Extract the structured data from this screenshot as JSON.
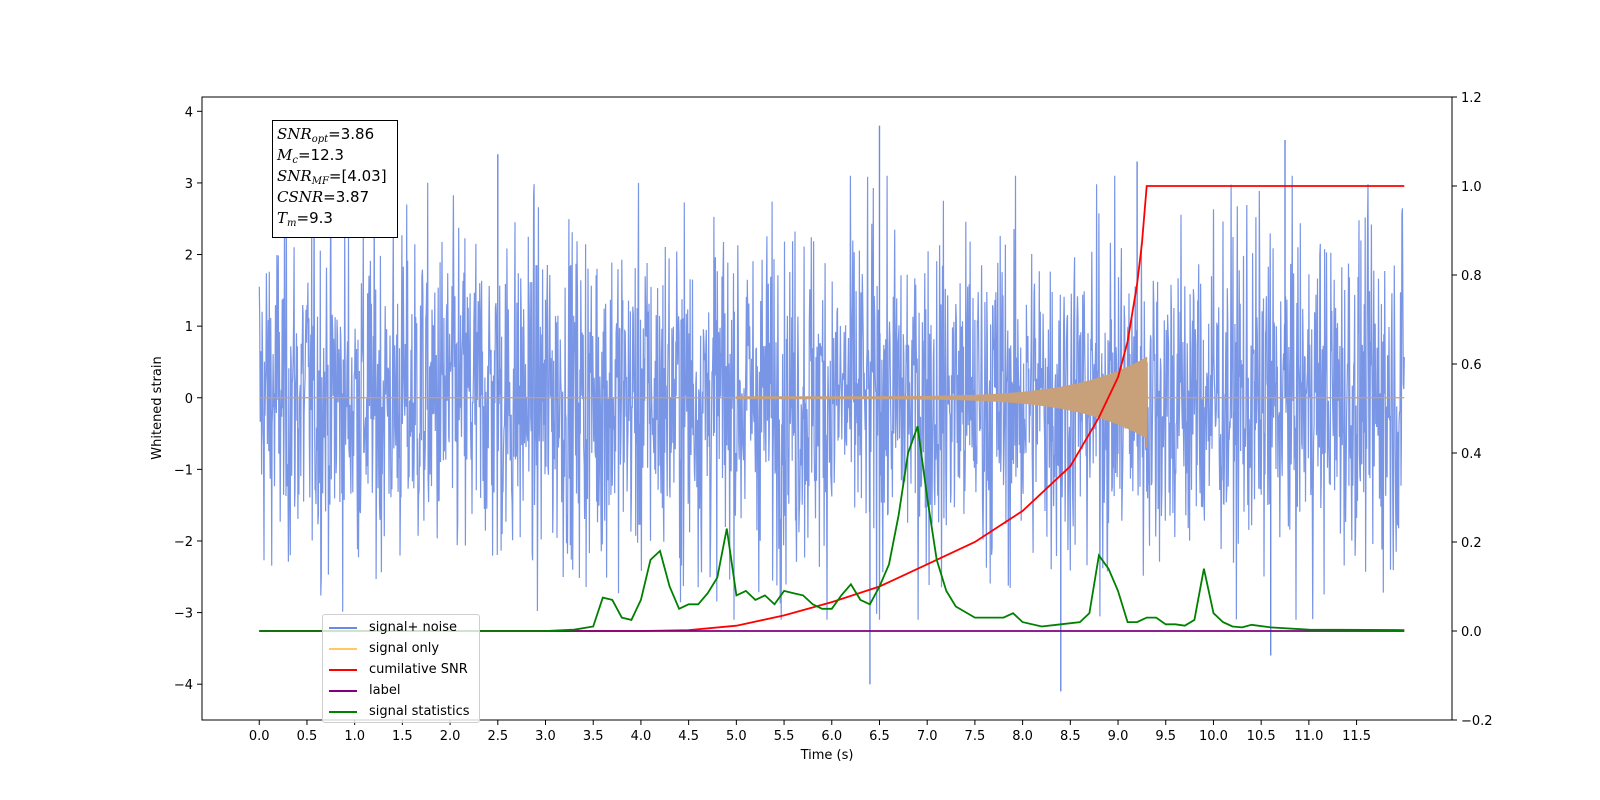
{
  "stats_box": {
    "snr_opt": {
      "sym": "SNR",
      "sub": "opt",
      "val": "=3.86"
    },
    "mc": {
      "sym": "M",
      "sub": "c",
      "val": "=12.3"
    },
    "snr_mf": {
      "sym": "SNR",
      "sub": "MF",
      "val": "=[4.03]"
    },
    "csnr": {
      "sym": "CSNR",
      "sub": "",
      "val": "=3.87"
    },
    "tm": {
      "sym": "T",
      "sub": "m",
      "val": "=9.3"
    }
  },
  "legend": {
    "items": [
      {
        "label": "signal+ noise",
        "color": "#6A8AE3"
      },
      {
        "label": "signal only",
        "color": "#FFC864"
      },
      {
        "label": "cumilative SNR",
        "color": "#FF0000"
      },
      {
        "label": "label",
        "color": "#800080"
      },
      {
        "label": "signal statistics",
        "color": "#008000"
      }
    ]
  },
  "chart_data": {
    "type": "line",
    "title": "",
    "xlabel": "Time (s)",
    "ylabel": "Whitened strain",
    "xlim": [
      -0.6,
      12.5
    ],
    "ylim": [
      -4.5,
      4.2
    ],
    "y2lim": [
      -0.2,
      1.2
    ],
    "x_ticks": [
      "0.0",
      "0.5",
      "1.0",
      "1.5",
      "2.0",
      "2.5",
      "3.0",
      "3.5",
      "4.0",
      "4.5",
      "5.0",
      "5.5",
      "6.0",
      "6.5",
      "7.0",
      "7.5",
      "8.0",
      "8.5",
      "9.0",
      "9.5",
      "10.0",
      "10.5",
      "11.0",
      "11.5"
    ],
    "y_ticks": [
      "4",
      "3",
      "2",
      "1",
      "0",
      "−1",
      "−2",
      "−3",
      "−4"
    ],
    "y2_ticks": [
      "1.2",
      "1.0",
      "0.8",
      "0.6",
      "0.4",
      "0.2",
      "0.0",
      "−0.2"
    ],
    "merger_time": 9.3,
    "series": [
      {
        "name": "signal+ noise",
        "axis": "left",
        "color": "#6A8AE3",
        "x_range": [
          0.0,
          12.0
        ],
        "typical_envelope": [
          -2.2,
          2.2
        ],
        "peaks": [
          [
            6.5,
            3.8
          ],
          [
            10.75,
            3.6
          ],
          [
            2.5,
            3.4
          ],
          [
            6.4,
            -4.0
          ],
          [
            8.4,
            -4.1
          ],
          [
            10.6,
            -3.6
          ],
          [
            9.2,
            3.3
          ]
        ]
      },
      {
        "name": "signal only",
        "axis": "left",
        "color": "#C8A07A",
        "chirp_start": 5.0,
        "chirp_end": 9.3,
        "peak_amplitude": [
          0.5,
          -0.7
        ]
      },
      {
        "name": "cumilative SNR",
        "axis": "right",
        "color": "#FF0000",
        "x": [
          0.0,
          4.0,
          4.5,
          5.0,
          5.5,
          6.0,
          6.5,
          7.0,
          7.5,
          8.0,
          8.5,
          8.8,
          9.0,
          9.1,
          9.2,
          9.25,
          9.3,
          12.0
        ],
        "values": [
          0.0,
          0.0,
          0.002,
          0.012,
          0.035,
          0.065,
          0.1,
          0.15,
          0.2,
          0.27,
          0.37,
          0.48,
          0.57,
          0.65,
          0.78,
          0.87,
          1.0,
          1.0
        ]
      },
      {
        "name": "label",
        "axis": "right",
        "color": "#800080",
        "x": [
          0.0,
          12.0
        ],
        "values": [
          0.0,
          0.0
        ]
      },
      {
        "name": "signal statistics",
        "axis": "right",
        "color": "#008000",
        "x": [
          0.0,
          3.0,
          3.3,
          3.5,
          3.6,
          3.7,
          3.8,
          3.9,
          4.0,
          4.1,
          4.2,
          4.3,
          4.4,
          4.5,
          4.6,
          4.7,
          4.8,
          4.9,
          5.0,
          5.1,
          5.2,
          5.3,
          5.4,
          5.5,
          5.6,
          5.7,
          5.8,
          5.9,
          6.0,
          6.1,
          6.2,
          6.3,
          6.4,
          6.5,
          6.6,
          6.7,
          6.8,
          6.9,
          7.0,
          7.1,
          7.2,
          7.3,
          7.5,
          7.7,
          7.8,
          7.9,
          8.0,
          8.2,
          8.4,
          8.6,
          8.7,
          8.8,
          8.9,
          9.0,
          9.1,
          9.2,
          9.3,
          9.4,
          9.5,
          9.6,
          9.7,
          9.8,
          9.9,
          10.0,
          10.1,
          10.2,
          10.3,
          10.4,
          10.6,
          11.0,
          12.0
        ],
        "values": [
          0.0,
          0.0,
          0.003,
          0.01,
          0.075,
          0.07,
          0.03,
          0.025,
          0.07,
          0.16,
          0.18,
          0.1,
          0.05,
          0.06,
          0.06,
          0.085,
          0.12,
          0.23,
          0.08,
          0.09,
          0.07,
          0.08,
          0.06,
          0.09,
          0.085,
          0.08,
          0.06,
          0.05,
          0.05,
          0.08,
          0.105,
          0.07,
          0.06,
          0.1,
          0.15,
          0.26,
          0.4,
          0.46,
          0.3,
          0.16,
          0.09,
          0.055,
          0.03,
          0.03,
          0.03,
          0.04,
          0.02,
          0.01,
          0.015,
          0.02,
          0.04,
          0.17,
          0.14,
          0.09,
          0.02,
          0.02,
          0.03,
          0.03,
          0.015,
          0.015,
          0.012,
          0.025,
          0.14,
          0.04,
          0.02,
          0.01,
          0.008,
          0.014,
          0.008,
          0.003,
          0.002
        ]
      }
    ]
  }
}
